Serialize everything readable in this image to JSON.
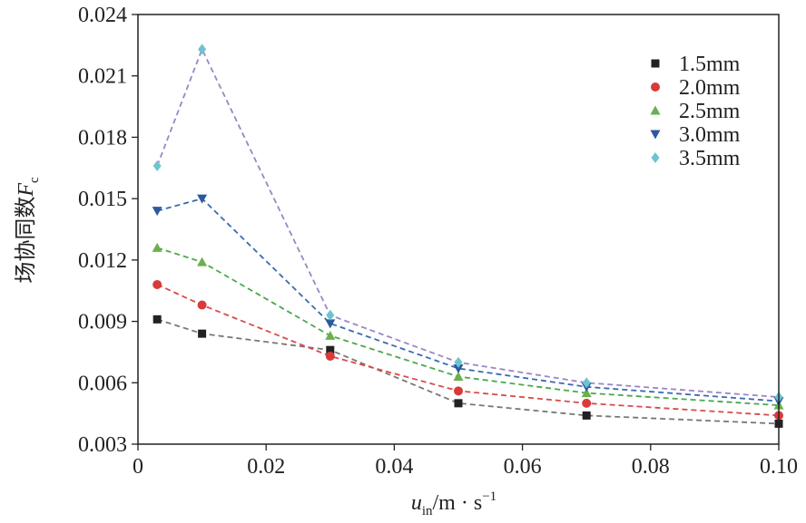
{
  "chart_data": {
    "type": "line",
    "title": "",
    "xlabel": {
      "main": "u",
      "sub": "in",
      "unit": "/m · s",
      "sup": "−1"
    },
    "ylabel": {
      "main": "场协同数",
      "symbol": "F",
      "sub": "c"
    },
    "xlim": [
      0,
      0.1
    ],
    "ylim": [
      0.003,
      0.024
    ],
    "xticks": [
      0,
      0.02,
      0.04,
      0.06,
      0.08,
      0.1
    ],
    "xtick_labels": [
      "0",
      "0.02",
      "0.04",
      "0.06",
      "0.08",
      "0.10"
    ],
    "yticks": [
      0.003,
      0.006,
      0.009,
      0.012,
      0.015,
      0.018,
      0.021,
      0.024
    ],
    "ytick_labels": [
      "0.003",
      "0.006",
      "0.009",
      "0.012",
      "0.015",
      "0.018",
      "0.021",
      "0.024"
    ],
    "grid": false,
    "legend_position": "top-right",
    "series": [
      {
        "name": "1.5mm",
        "marker": "square",
        "marker_color": "#222222",
        "line_color": "#777777",
        "x": [
          0.003,
          0.01,
          0.03,
          0.05,
          0.07,
          0.1
        ],
        "y": [
          0.0091,
          0.0084,
          0.0076,
          0.005,
          0.0044,
          0.004
        ]
      },
      {
        "name": "2.0mm",
        "marker": "circle",
        "marker_color": "#d93a3a",
        "line_color": "#d94a4a",
        "x": [
          0.003,
          0.01,
          0.03,
          0.05,
          0.07,
          0.1
        ],
        "y": [
          0.0108,
          0.0098,
          0.0073,
          0.0056,
          0.005,
          0.0044
        ]
      },
      {
        "name": "2.5mm",
        "marker": "triangle-up",
        "marker_color": "#6ab04c",
        "line_color": "#4aa84a",
        "x": [
          0.003,
          0.01,
          0.03,
          0.05,
          0.07,
          0.1
        ],
        "y": [
          0.0126,
          0.0119,
          0.0083,
          0.0063,
          0.0055,
          0.0049
        ]
      },
      {
        "name": "3.0mm",
        "marker": "triangle-down",
        "marker_color": "#2b5a9c",
        "line_color": "#3a6ab0",
        "x": [
          0.003,
          0.01,
          0.03,
          0.05,
          0.07,
          0.1
        ],
        "y": [
          0.0144,
          0.015,
          0.0089,
          0.0067,
          0.0058,
          0.0051
        ]
      },
      {
        "name": "3.5mm",
        "marker": "diamond",
        "marker_color": "#6cc4d0",
        "line_color": "#9a86c4",
        "x": [
          0.003,
          0.01,
          0.03,
          0.05,
          0.07,
          0.1
        ],
        "y": [
          0.0166,
          0.0223,
          0.0093,
          0.007,
          0.006,
          0.0053
        ]
      }
    ]
  }
}
